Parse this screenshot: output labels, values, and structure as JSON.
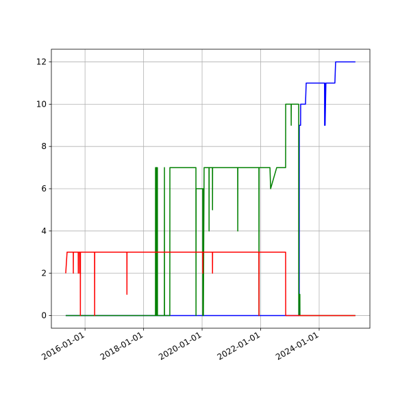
{
  "chart_data": {
    "type": "line",
    "xlim": [
      "2014-11-07",
      "2025-09-25"
    ],
    "xticks": [
      "2016-01-01",
      "2018-01-01",
      "2020-01-01",
      "2022-01-01",
      "2024-01-01"
    ],
    "ylim": [
      -0.6,
      12.6
    ],
    "yticks": [
      0,
      2,
      4,
      6,
      8,
      10,
      12
    ],
    "grid": true,
    "series": [
      {
        "color": "#0000ff",
        "x": [
          "2015-05-05",
          "2023-04-27",
          "2023-04-28",
          "2023-05-14",
          "2023-05-15",
          "2023-07-14",
          "2023-07-23",
          "2024-03-08",
          "2024-03-09",
          "2024-03-12",
          "2024-03-15",
          "2024-03-25",
          "2024-07-15",
          "2024-07-24",
          "2025-03-28"
        ],
        "values": [
          0,
          0,
          9,
          9,
          10,
          10,
          11,
          11,
          9,
          11,
          9,
          11,
          11,
          12,
          12
        ]
      },
      {
        "color": "#008000",
        "x": [
          "2015-05-05",
          "2018-05-29",
          "2018-05-30",
          "2018-05-31",
          "2018-06-07",
          "2018-06-08",
          "2018-06-09",
          "2018-06-15",
          "2018-06-16",
          "2018-06-22",
          "2018-06-23",
          "2018-09-17",
          "2018-09-18",
          "2018-09-19",
          "2018-11-24",
          "2018-11-25",
          "2019-10-16",
          "2019-10-17",
          "2019-10-18",
          "2020-01-09",
          "2020-01-10",
          "2020-01-16",
          "2020-01-17",
          "2020-01-26",
          "2020-03-27",
          "2020-03-28",
          "2020-03-29",
          "2020-05-09",
          "2020-05-10",
          "2020-05-11",
          "2021-03-20",
          "2021-03-21",
          "2021-03-22",
          "2021-12-10",
          "2021-12-11",
          "2021-12-12",
          "2022-04-27",
          "2022-05-05",
          "2022-07-20",
          "2022-11-08",
          "2022-11-09",
          "2023-01-16",
          "2023-01-17",
          "2023-01-18",
          "2023-04-20",
          "2023-04-21",
          "2023-04-22",
          "2023-05-05",
          "2023-05-06",
          "2025-03-28"
        ],
        "values": [
          0,
          0,
          7,
          0,
          0,
          7,
          0,
          7,
          0,
          7,
          0,
          0,
          7,
          0,
          0,
          7,
          7,
          0,
          6,
          6,
          0,
          6,
          0,
          7,
          7,
          4,
          7,
          7,
          5,
          7,
          7,
          4,
          7,
          7,
          0,
          7,
          7,
          6,
          7,
          7,
          10,
          10,
          9,
          10,
          10,
          0,
          1,
          1,
          0,
          0
        ]
      },
      {
        "color": "#ff0000",
        "x": [
          "2015-05-05",
          "2015-05-22",
          "2015-08-07",
          "2015-08-08",
          "2015-08-09",
          "2015-10-08",
          "2015-10-09",
          "2015-10-10",
          "2015-10-25",
          "2015-10-26",
          "2015-10-27",
          "2015-11-03",
          "2015-11-04",
          "2015-11-05",
          "2016-04-29",
          "2016-04-30",
          "2016-05-01",
          "2017-06-06",
          "2017-06-07",
          "2017-06-08",
          "2020-01-09",
          "2020-01-10",
          "2020-01-11",
          "2020-05-09",
          "2020-05-10",
          "2020-05-11",
          "2021-12-10",
          "2021-12-11",
          "2021-12-12",
          "2022-11-08",
          "2022-11-09",
          "2025-03-28"
        ],
        "values": [
          2,
          3,
          3,
          2,
          3,
          3,
          2,
          3,
          3,
          2,
          3,
          3,
          0,
          3,
          3,
          0,
          3,
          3,
          1,
          3,
          3,
          2,
          3,
          3,
          2,
          3,
          3,
          0,
          3,
          3,
          0,
          0
        ]
      }
    ]
  }
}
